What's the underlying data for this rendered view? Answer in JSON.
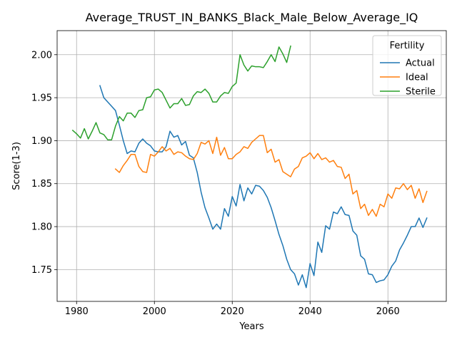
{
  "chart_data": {
    "type": "line",
    "title": "Average_TRUST_IN_BANKS_Black_Male_Below_Average_IQ",
    "xlabel": "Years",
    "ylabel": "Score(1-3)",
    "xlim": [
      1975,
      2075
    ],
    "ylim": [
      1.713,
      2.028
    ],
    "xticks": [
      1980,
      2000,
      2020,
      2040,
      2060
    ],
    "yticks": [
      1.75,
      1.8,
      1.85,
      1.9,
      1.95,
      2.0
    ],
    "xtick_labels": [
      "1980",
      "2000",
      "2020",
      "2040",
      "2060"
    ],
    "ytick_labels": [
      "1.75",
      "1.80",
      "1.85",
      "1.90",
      "1.95",
      "2.00"
    ],
    "grid": true,
    "legend": {
      "title": "Fertility",
      "placement": "top-right"
    },
    "series": [
      {
        "name": "Actual",
        "color": "#1f77b4",
        "x": [
          1986,
          1987,
          1988,
          1989,
          1990,
          1991,
          1992,
          1993,
          1994,
          1995,
          1996,
          1997,
          1998,
          1999,
          2000,
          2001,
          2002,
          2003,
          2004,
          2005,
          2006,
          2007,
          2008,
          2009,
          2010,
          2011,
          2012,
          2013,
          2014,
          2015,
          2016,
          2017,
          2018,
          2019,
          2020,
          2021,
          2022,
          2023,
          2024,
          2025,
          2026,
          2027,
          2028,
          2029,
          2030,
          2031,
          2032,
          2033,
          2034,
          2035,
          2036,
          2037,
          2038,
          2039,
          2040,
          2041,
          2042,
          2043,
          2044,
          2045,
          2046,
          2047,
          2048,
          2049,
          2050,
          2051,
          2052,
          2053,
          2054,
          2055,
          2056,
          2057,
          2058,
          2059,
          2060,
          2061,
          2062,
          2063,
          2064,
          2065,
          2066,
          2067,
          2068,
          2069,
          2070
        ],
        "values": [
          1.964,
          1.95,
          1.945,
          1.94,
          1.935,
          1.918,
          1.9,
          1.885,
          1.888,
          1.887,
          1.897,
          1.902,
          1.897,
          1.894,
          1.888,
          1.887,
          1.887,
          1.893,
          1.911,
          1.904,
          1.906,
          1.895,
          1.899,
          1.883,
          1.88,
          1.863,
          1.84,
          1.822,
          1.81,
          1.797,
          1.803,
          1.797,
          1.821,
          1.812,
          1.835,
          1.824,
          1.849,
          1.83,
          1.845,
          1.838,
          1.848,
          1.847,
          1.842,
          1.834,
          1.822,
          1.807,
          1.791,
          1.778,
          1.762,
          1.75,
          1.745,
          1.732,
          1.744,
          1.729,
          1.757,
          1.743,
          1.782,
          1.77,
          1.801,
          1.797,
          1.817,
          1.815,
          1.823,
          1.814,
          1.813,
          1.795,
          1.79,
          1.766,
          1.762,
          1.745,
          1.744,
          1.735,
          1.737,
          1.738,
          1.744,
          1.754,
          1.76,
          1.773,
          1.781,
          1.79,
          1.8,
          1.8,
          1.81,
          1.799,
          1.81
        ]
      },
      {
        "name": "Ideal",
        "color": "#ff7f0e",
        "x": [
          1990,
          1991,
          1992,
          1993,
          1994,
          1995,
          1996,
          1997,
          1998,
          1999,
          2000,
          2001,
          2002,
          2003,
          2004,
          2005,
          2006,
          2007,
          2008,
          2009,
          2010,
          2011,
          2012,
          2013,
          2014,
          2015,
          2016,
          2017,
          2018,
          2019,
          2020,
          2021,
          2022,
          2023,
          2024,
          2025,
          2026,
          2027,
          2028,
          2029,
          2030,
          2031,
          2032,
          2033,
          2034,
          2035,
          2036,
          2037,
          2038,
          2039,
          2040,
          2041,
          2042,
          2043,
          2044,
          2045,
          2046,
          2047,
          2048,
          2049,
          2050,
          2051,
          2052,
          2053,
          2054,
          2055,
          2056,
          2057,
          2058,
          2059,
          2060,
          2061,
          2062,
          2063,
          2064,
          2065,
          2066,
          2067,
          2068,
          2069,
          2070
        ],
        "values": [
          1.867,
          1.863,
          1.871,
          1.877,
          1.884,
          1.884,
          1.87,
          1.864,
          1.863,
          1.884,
          1.882,
          1.887,
          1.893,
          1.888,
          1.891,
          1.884,
          1.887,
          1.886,
          1.882,
          1.879,
          1.878,
          1.885,
          1.898,
          1.896,
          1.9,
          1.885,
          1.904,
          1.883,
          1.892,
          1.879,
          1.879,
          1.884,
          1.887,
          1.893,
          1.891,
          1.898,
          1.902,
          1.906,
          1.906,
          1.886,
          1.89,
          1.875,
          1.878,
          1.864,
          1.861,
          1.858,
          1.867,
          1.87,
          1.88,
          1.882,
          1.886,
          1.879,
          1.885,
          1.878,
          1.88,
          1.875,
          1.877,
          1.87,
          1.869,
          1.856,
          1.861,
          1.838,
          1.842,
          1.821,
          1.826,
          1.813,
          1.82,
          1.812,
          1.826,
          1.823,
          1.838,
          1.833,
          1.845,
          1.844,
          1.85,
          1.843,
          1.848,
          1.833,
          1.844,
          1.828,
          1.841
        ]
      },
      {
        "name": "Sterile",
        "color": "#2ca02c",
        "x": [
          1979,
          1980,
          1981,
          1982,
          1983,
          1984,
          1985,
          1986,
          1987,
          1988,
          1989,
          1990,
          1991,
          1992,
          1993,
          1994,
          1995,
          1996,
          1997,
          1998,
          1999,
          2000,
          2001,
          2002,
          2003,
          2004,
          2005,
          2006,
          2007,
          2008,
          2009,
          2010,
          2011,
          2012,
          2013,
          2014,
          2015,
          2016,
          2017,
          2018,
          2019,
          2020,
          2021,
          2022,
          2023,
          2024,
          2025,
          2026,
          2027,
          2028,
          2029,
          2030,
          2031,
          2032,
          2033,
          2034,
          2035
        ],
        "values": [
          1.912,
          1.908,
          1.903,
          1.914,
          1.902,
          1.911,
          1.921,
          1.909,
          1.907,
          1.901,
          1.901,
          1.917,
          1.928,
          1.923,
          1.932,
          1.932,
          1.927,
          1.935,
          1.936,
          1.95,
          1.951,
          1.959,
          1.96,
          1.956,
          1.947,
          1.938,
          1.943,
          1.943,
          1.949,
          1.941,
          1.942,
          1.952,
          1.957,
          1.956,
          1.96,
          1.955,
          1.945,
          1.945,
          1.952,
          1.956,
          1.955,
          1.963,
          1.967,
          2.0,
          1.988,
          1.981,
          1.987,
          1.986,
          1.986,
          1.985,
          1.992,
          2.0,
          1.992,
          2.009,
          2.001,
          1.991,
          2.01
        ]
      }
    ]
  }
}
